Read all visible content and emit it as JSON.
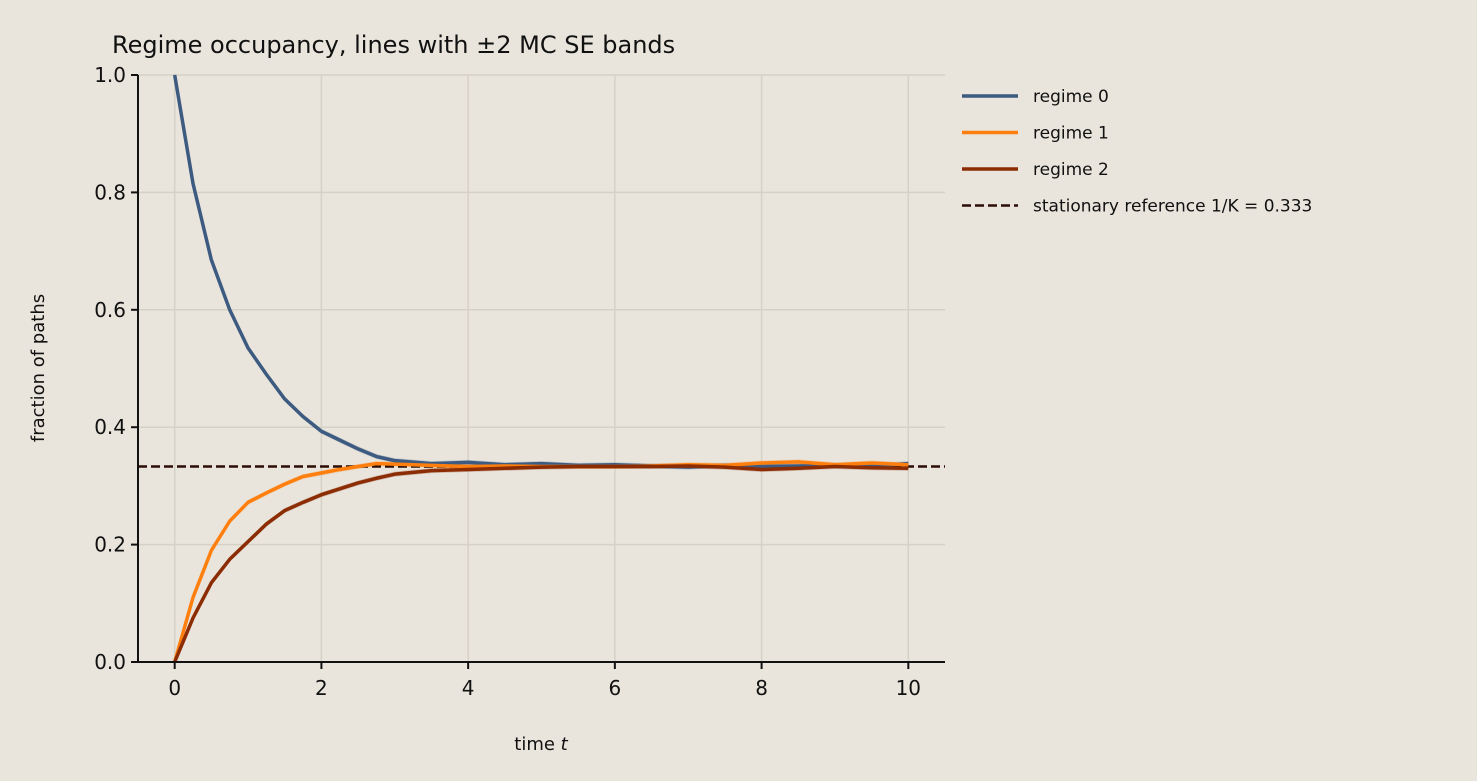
{
  "chart_data": {
    "type": "line",
    "title": "Regime occupancy, lines with ±2 MC SE bands",
    "xlabel": "time",
    "xlabel_var": "t",
    "ylabel": "fraction of paths",
    "xlim": [
      -0.5,
      10.5
    ],
    "ylim": [
      0.0,
      1.0
    ],
    "x_ticks": [
      0,
      2,
      4,
      6,
      8,
      10
    ],
    "x_tick_labels": [
      "0",
      "2",
      "4",
      "6",
      "8",
      "10"
    ],
    "y_ticks": [
      0.0,
      0.2,
      0.4,
      0.6,
      0.8,
      1.0
    ],
    "y_tick_labels": [
      "0.0",
      "0.2",
      "0.4",
      "0.6",
      "0.8",
      "1.0"
    ],
    "grid": true,
    "legend_position": "outside-right-top",
    "x": [
      0,
      0.25,
      0.5,
      0.75,
      1,
      1.25,
      1.5,
      1.75,
      2,
      2.25,
      2.5,
      2.75,
      3,
      3.5,
      4,
      4.5,
      5,
      5.5,
      6,
      6.5,
      7,
      7.5,
      8,
      8.5,
      9,
      9.5,
      10
    ],
    "series": [
      {
        "name": "regime 0",
        "color": "#3d5a80",
        "values": [
          1.0,
          0.815,
          0.685,
          0.6,
          0.535,
          0.49,
          0.448,
          0.418,
          0.393,
          0.378,
          0.363,
          0.35,
          0.343,
          0.338,
          0.34,
          0.336,
          0.338,
          0.335,
          0.336,
          0.334,
          0.332,
          0.335,
          0.333,
          0.334,
          0.335,
          0.334,
          0.338
        ]
      },
      {
        "name": "regime 1",
        "color": "#ff7f0e",
        "values": [
          0.0,
          0.11,
          0.19,
          0.24,
          0.272,
          0.288,
          0.303,
          0.316,
          0.322,
          0.328,
          0.333,
          0.338,
          0.337,
          0.335,
          0.333,
          0.334,
          0.333,
          0.333,
          0.333,
          0.334,
          0.336,
          0.335,
          0.339,
          0.341,
          0.336,
          0.339,
          0.336
        ]
      },
      {
        "name": "regime 2",
        "color": "#8b2c02",
        "values": [
          0.0,
          0.075,
          0.135,
          0.175,
          0.205,
          0.235,
          0.258,
          0.272,
          0.285,
          0.295,
          0.305,
          0.313,
          0.32,
          0.326,
          0.328,
          0.33,
          0.332,
          0.333,
          0.333,
          0.333,
          0.334,
          0.332,
          0.328,
          0.33,
          0.333,
          0.331,
          0.33
        ]
      }
    ],
    "reference_line": {
      "name": "stationary reference 1/K = 0.333",
      "value": 0.333,
      "color": "#2a0d05",
      "style": "dashed"
    }
  }
}
